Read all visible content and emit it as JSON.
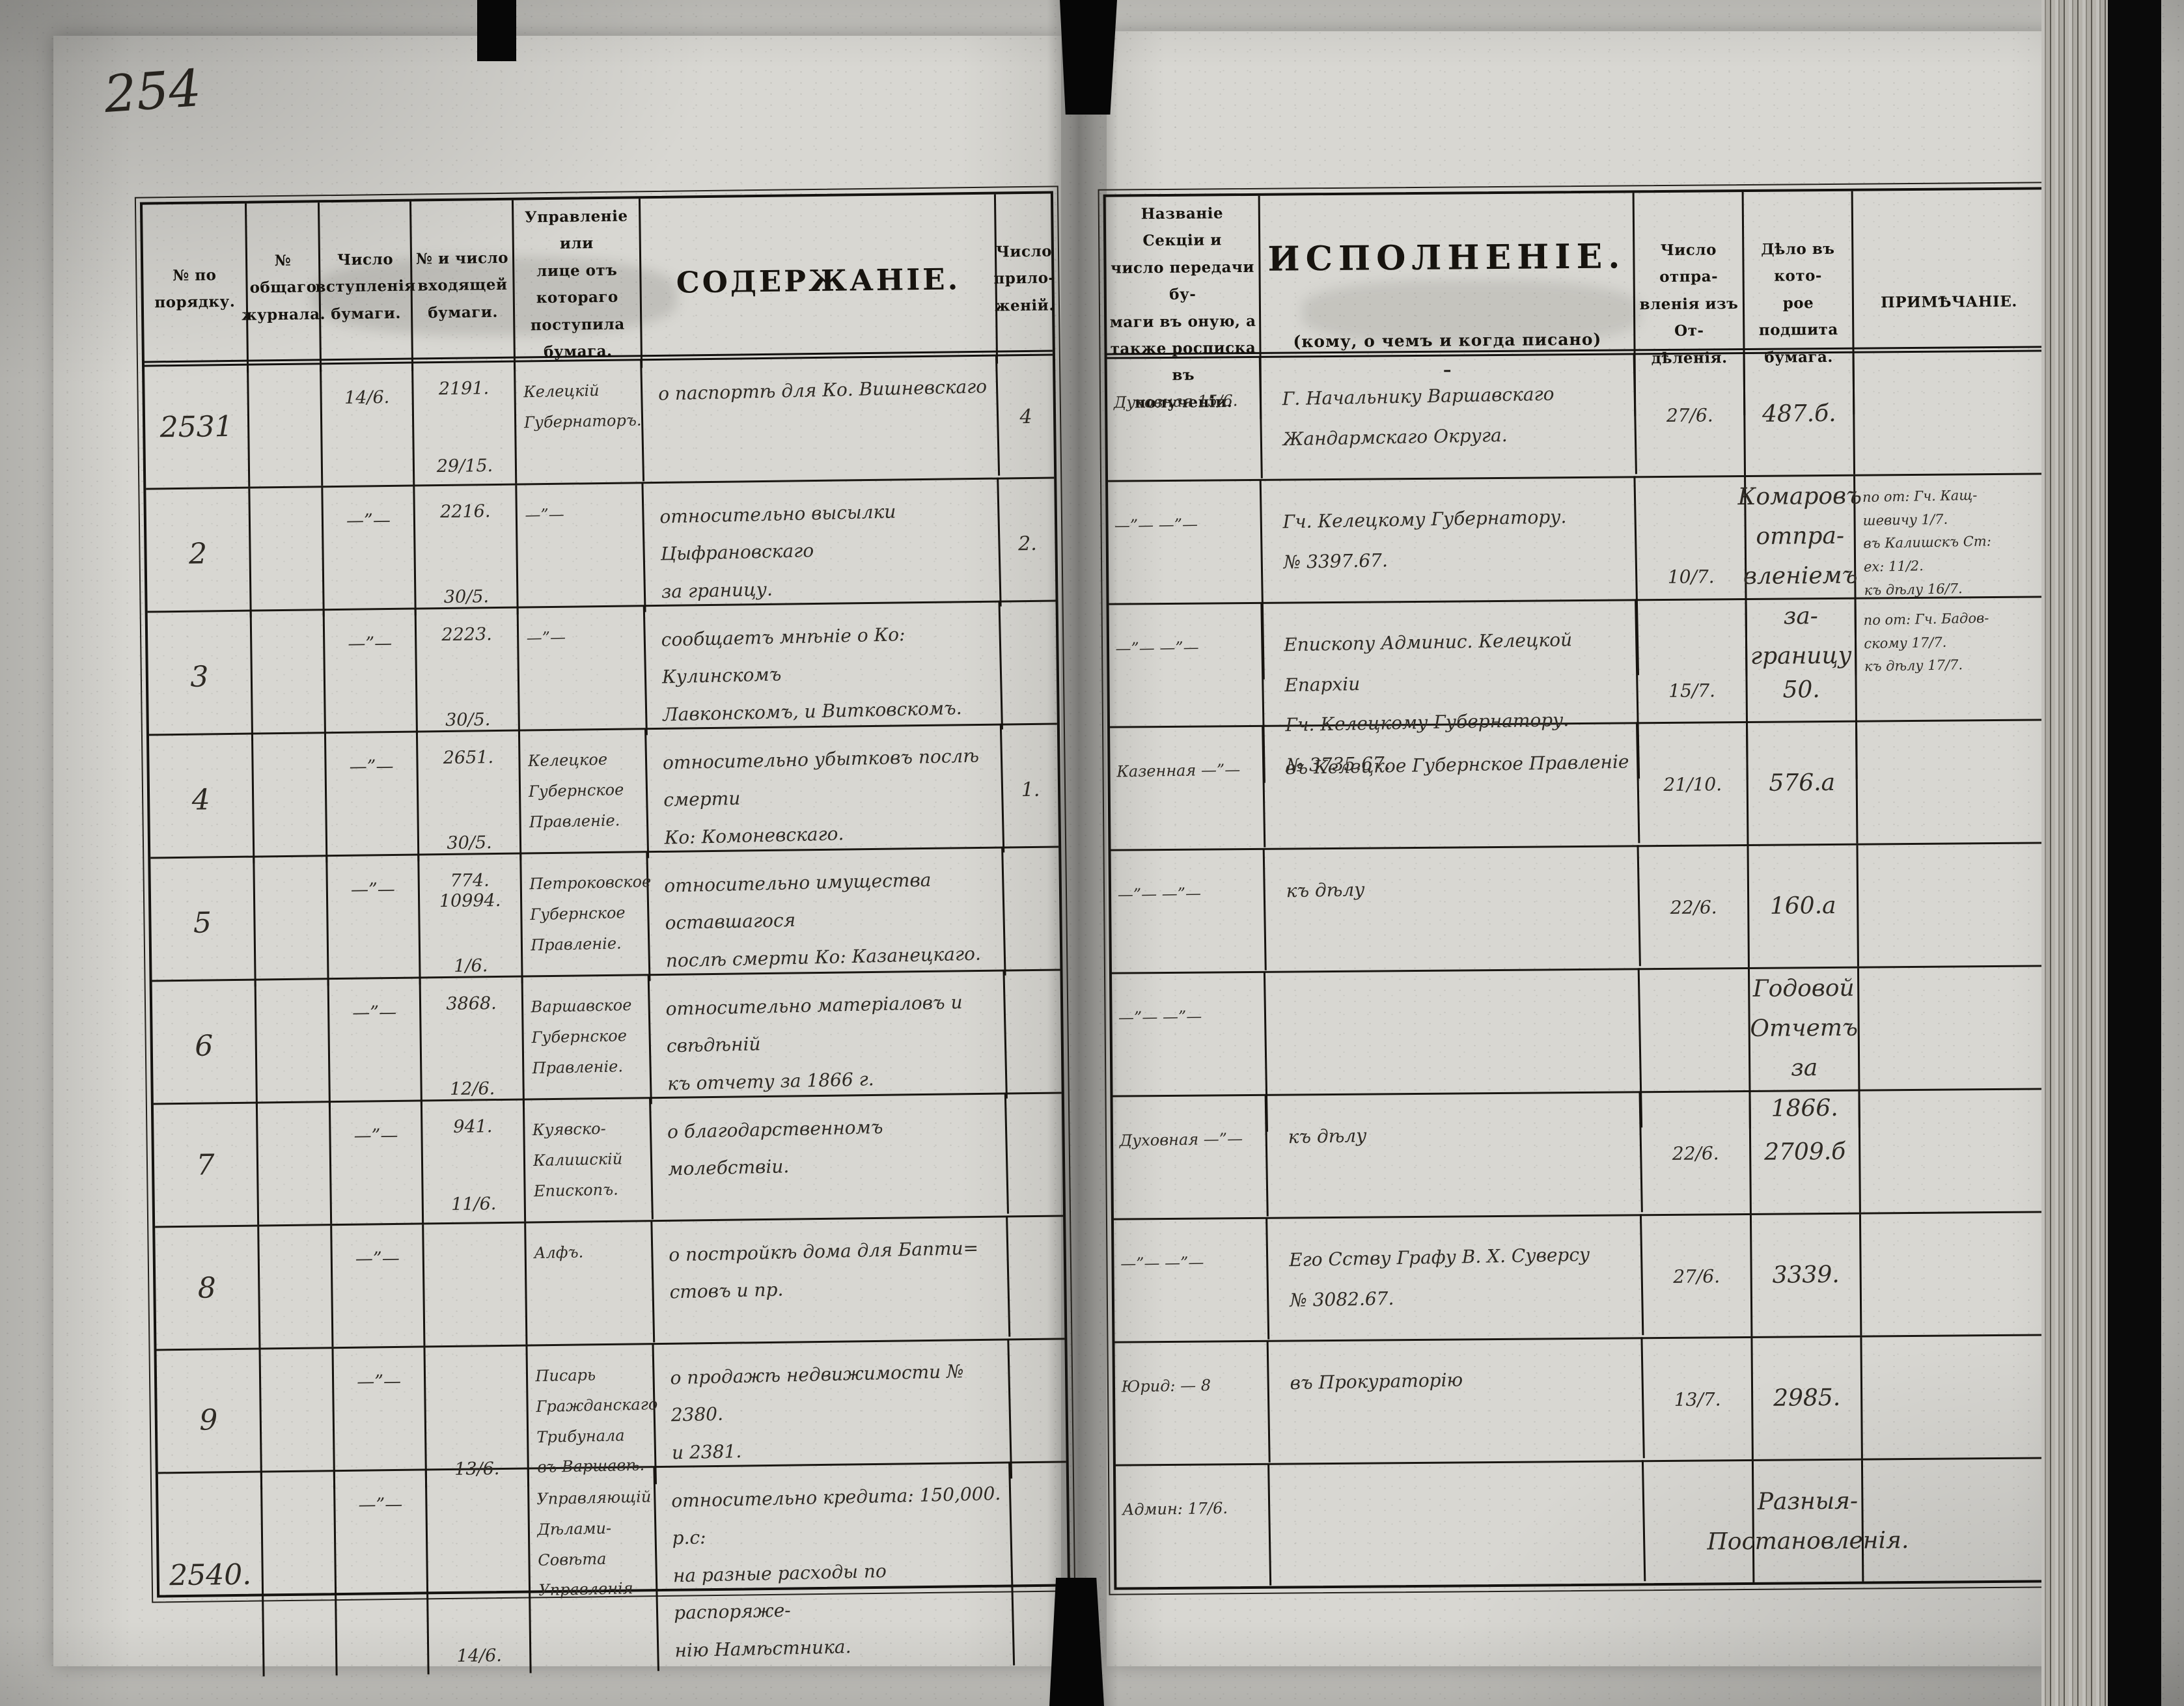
{
  "page_number": "254",
  "colors": {
    "paper": "#d7d6d1",
    "ink_print": "#17140f",
    "ink_hand": "#2e2a24",
    "binding": "#060606"
  },
  "left_table": {
    "headers": {
      "order_no": "№ по\nпорядку.",
      "journal_no": "№ общаго\nжурнала.",
      "receipt_date": "Число\nвступленія\nбумаги.",
      "incoming": "№ и число\nвходящей\nбумаги.",
      "source": "Управленіе или\nлице отъ котораго\nпоступила бумага.",
      "content": "СОДЕРЖАНІЕ.",
      "enclosures": "Число\nприло-\nженій."
    },
    "rows": [
      {
        "no": "2531",
        "journal": "",
        "date_in": "14/6.",
        "doc_no": "2191.",
        "doc_date": "29/15.",
        "source": "Келецкій\nГубернаторъ.",
        "content": "о паспортѣ для Ко. Вишневскаго",
        "encl": "4"
      },
      {
        "no": "2",
        "journal": "",
        "date_in": "—”—",
        "doc_no": "2216.",
        "doc_date": "30/5.",
        "source": "—”—",
        "content": "относительно высылки Цыфрановскаго\nза границу.",
        "encl": "2."
      },
      {
        "no": "3",
        "journal": "",
        "date_in": "—”—",
        "doc_no": "2223.",
        "doc_date": "30/5.",
        "source": "—”—",
        "content": "сообщаетъ мнѣніе о Ко: Кулинскомъ\nЛавконскомъ, и Витковскомъ.",
        "encl": ""
      },
      {
        "no": "4",
        "journal": "",
        "date_in": "—”—",
        "doc_no": "2651.",
        "doc_date": "30/5.",
        "source": "Келецкое\nГубернское\nПравленіе.",
        "content": "относительно убытковъ послѣ смерти\nКо: Комоневскаго.",
        "encl": "1."
      },
      {
        "no": "5",
        "journal": "",
        "date_in": "—”—",
        "doc_no": "774.\n10994.",
        "doc_date": "1/6.",
        "source": "Петроковское\nГубернское\nПравленіе.",
        "content": "относительно имущества оставшагося\nпослѣ смерти Ко: Казанецкаго.",
        "encl": ""
      },
      {
        "no": "6",
        "journal": "",
        "date_in": "—”—",
        "doc_no": "3868.",
        "doc_date": "12/6.",
        "source": "Варшавское\nГубернское\nПравленіе.",
        "content": "относительно матеріаловъ и свѣдѣній\nкъ отчету за 1866 г.",
        "encl": ""
      },
      {
        "no": "7",
        "journal": "",
        "date_in": "—”—",
        "doc_no": "941.",
        "doc_date": "11/6.",
        "source": "Куявско-Калишскій\nЕпископъ.",
        "content": "о благодарственномъ молебствіи.",
        "encl": ""
      },
      {
        "no": "8",
        "journal": "",
        "date_in": "—”—",
        "doc_no": "",
        "doc_date": "",
        "source": "Алфъ.",
        "content": "о постройкѣ дома для Бапти=\nстовъ и пр.",
        "encl": ""
      },
      {
        "no": "9",
        "journal": "",
        "date_in": "—”—",
        "doc_no": "",
        "doc_date": "13/6.",
        "source": "Писарь\nГражданскаго\nТрибунала\nвъ Варшавѣ.",
        "content": "о продажѣ недвижимости № 2380.\nи 2381.",
        "encl": ""
      },
      {
        "no": "2540.",
        "journal": "",
        "date_in": "—”—",
        "doc_no": "",
        "doc_date": "14/6.",
        "source": "Управляющій\nДѣлами-\nСовѣта Управленія",
        "content": "относительно кредита: 150,000. р.с:\nна разные расходы по распоряже-\nнію Намѣстника.",
        "encl": ""
      }
    ]
  },
  "right_table": {
    "headers": {
      "section": "Названіе Секціи и\nчисло передачи бу-\nмаги въ оную, а\nтакже росписка въ\nполученіи.",
      "execution_title": "ИСПОЛНЕНІЕ.",
      "execution_sub": "(кому, о чемъ и когда писано)\n–",
      "sent": "Число отпра-\nвленія изъ От-\nдѣленія.",
      "filed": "Дѣло въ кото-\nрое подшита\nбумага.",
      "note": "ПРИМѢЧАНІЕ."
    },
    "rows": [
      {
        "section": "Духовная    15/6.",
        "execution": "Г. Начальнику Варшавскаго\nЖандармскаго Округа.",
        "sent": "27/6.",
        "filed": "487.б.",
        "note": ""
      },
      {
        "section": "—”—    —”—",
        "execution": "Гч. Келецкому Губернатору.\n№ 3397.67.",
        "sent": "10/7.",
        "filed": "Комаровъ отпра-\nвленіемъ за-\nграницу",
        "note": "по от: Гч. Кащ-\nшевичу 1/7.\nвъ Калишскъ Ст:\nех: 11/2.\nкъ дѣлу 16/7."
      },
      {
        "section": "—”—    —”—",
        "execution": "Епископу Админис. Келецкой Епархіи\nГч. Келецкому Губернатору.\n№ 3735.67.",
        "sent": "15/7.",
        "filed": "50.",
        "note": "по от: Гч. Бадов-\nскому 17/7.\nкъ дѣлу 17/7."
      },
      {
        "section": "Казенная  —”—",
        "execution": "въ Келецкое Губернское Правленіе",
        "sent": "21/10.",
        "filed": "576.а",
        "note": ""
      },
      {
        "section": "—”—    —”—",
        "execution": "къ дѣлу",
        "sent": "22/6.",
        "filed": "160.а",
        "note": ""
      },
      {
        "section": "—”—    —”—",
        "execution": "",
        "sent": "",
        "filed": "Годовой\nОтчетъ за\n1866.",
        "note": ""
      },
      {
        "section": "Духовная  —”—",
        "execution": "къ дѣлу",
        "sent": "22/6.",
        "filed": "2709.б",
        "note": ""
      },
      {
        "section": "—”—    —”—",
        "execution": "Его Сству Графу В. Х. Суверсу\n№ 3082.67.",
        "sent": "27/6.",
        "filed": "3339.",
        "note": ""
      },
      {
        "section": "Юрид:  — 8",
        "execution": "въ Прокураторію",
        "sent": "13/7.",
        "filed": "2985.",
        "note": ""
      },
      {
        "section": "Админ:   17/6.",
        "execution": "",
        "sent": "",
        "filed": "Разныя-\nПостановленія.",
        "note": ""
      }
    ]
  }
}
